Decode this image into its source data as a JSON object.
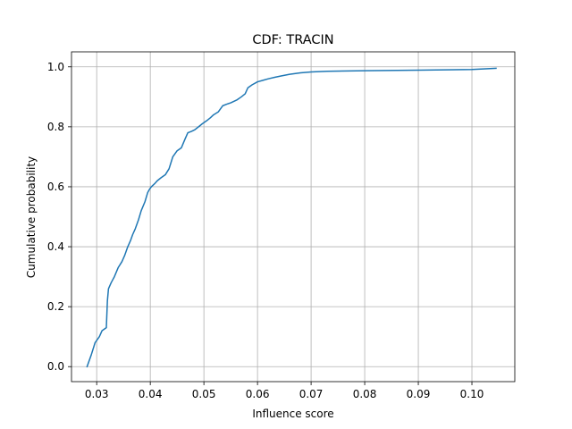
{
  "chart_data": {
    "type": "line",
    "title": "CDF: TRACIN",
    "xlabel": "Influence score",
    "ylabel": "Cumulative probability",
    "xlim": [
      0.0253,
      0.108
    ],
    "ylim": [
      -0.05,
      1.05
    ],
    "grid": true,
    "xticks": [
      "0.03",
      "0.04",
      "0.05",
      "0.06",
      "0.07",
      "0.08",
      "0.09",
      "0.10"
    ],
    "xtick_values": [
      0.03,
      0.04,
      0.05,
      0.06,
      0.07,
      0.08,
      0.09,
      0.1
    ],
    "yticks": [
      "0.0",
      "0.2",
      "0.4",
      "0.6",
      "0.8",
      "1.0"
    ],
    "ytick_values": [
      0.0,
      0.2,
      0.4,
      0.6,
      0.8,
      1.0
    ],
    "line_color": "#1f77b4",
    "series": [
      {
        "x": [
          0.0282,
          0.029,
          0.0297,
          0.0305,
          0.031,
          0.0318,
          0.032,
          0.0322,
          0.0327,
          0.0333,
          0.034,
          0.0347,
          0.0352,
          0.0358,
          0.0363,
          0.0367,
          0.0372,
          0.0378,
          0.0383,
          0.039,
          0.0395,
          0.0398,
          0.0402,
          0.0408,
          0.0413,
          0.042,
          0.0428,
          0.0435,
          0.0442,
          0.045,
          0.0458,
          0.0465,
          0.047,
          0.0477,
          0.0483,
          0.049,
          0.0497,
          0.0505,
          0.0512,
          0.0518,
          0.0527,
          0.0535,
          0.0542,
          0.055,
          0.0562,
          0.057,
          0.0577,
          0.0582,
          0.059,
          0.06,
          0.061,
          0.062,
          0.0632,
          0.0645,
          0.066,
          0.068,
          0.07,
          0.073,
          0.08,
          0.09,
          0.1,
          0.1045
        ],
        "y": [
          0.0,
          0.04,
          0.08,
          0.1,
          0.12,
          0.13,
          0.22,
          0.26,
          0.28,
          0.3,
          0.33,
          0.35,
          0.37,
          0.4,
          0.42,
          0.44,
          0.46,
          0.49,
          0.52,
          0.55,
          0.58,
          0.59,
          0.6,
          0.61,
          0.62,
          0.63,
          0.64,
          0.66,
          0.7,
          0.72,
          0.73,
          0.76,
          0.78,
          0.785,
          0.79,
          0.8,
          0.81,
          0.82,
          0.83,
          0.84,
          0.85,
          0.87,
          0.875,
          0.88,
          0.89,
          0.9,
          0.91,
          0.93,
          0.94,
          0.95,
          0.955,
          0.96,
          0.965,
          0.97,
          0.975,
          0.98,
          0.983,
          0.985,
          0.987,
          0.989,
          0.991,
          0.995
        ]
      }
    ]
  }
}
